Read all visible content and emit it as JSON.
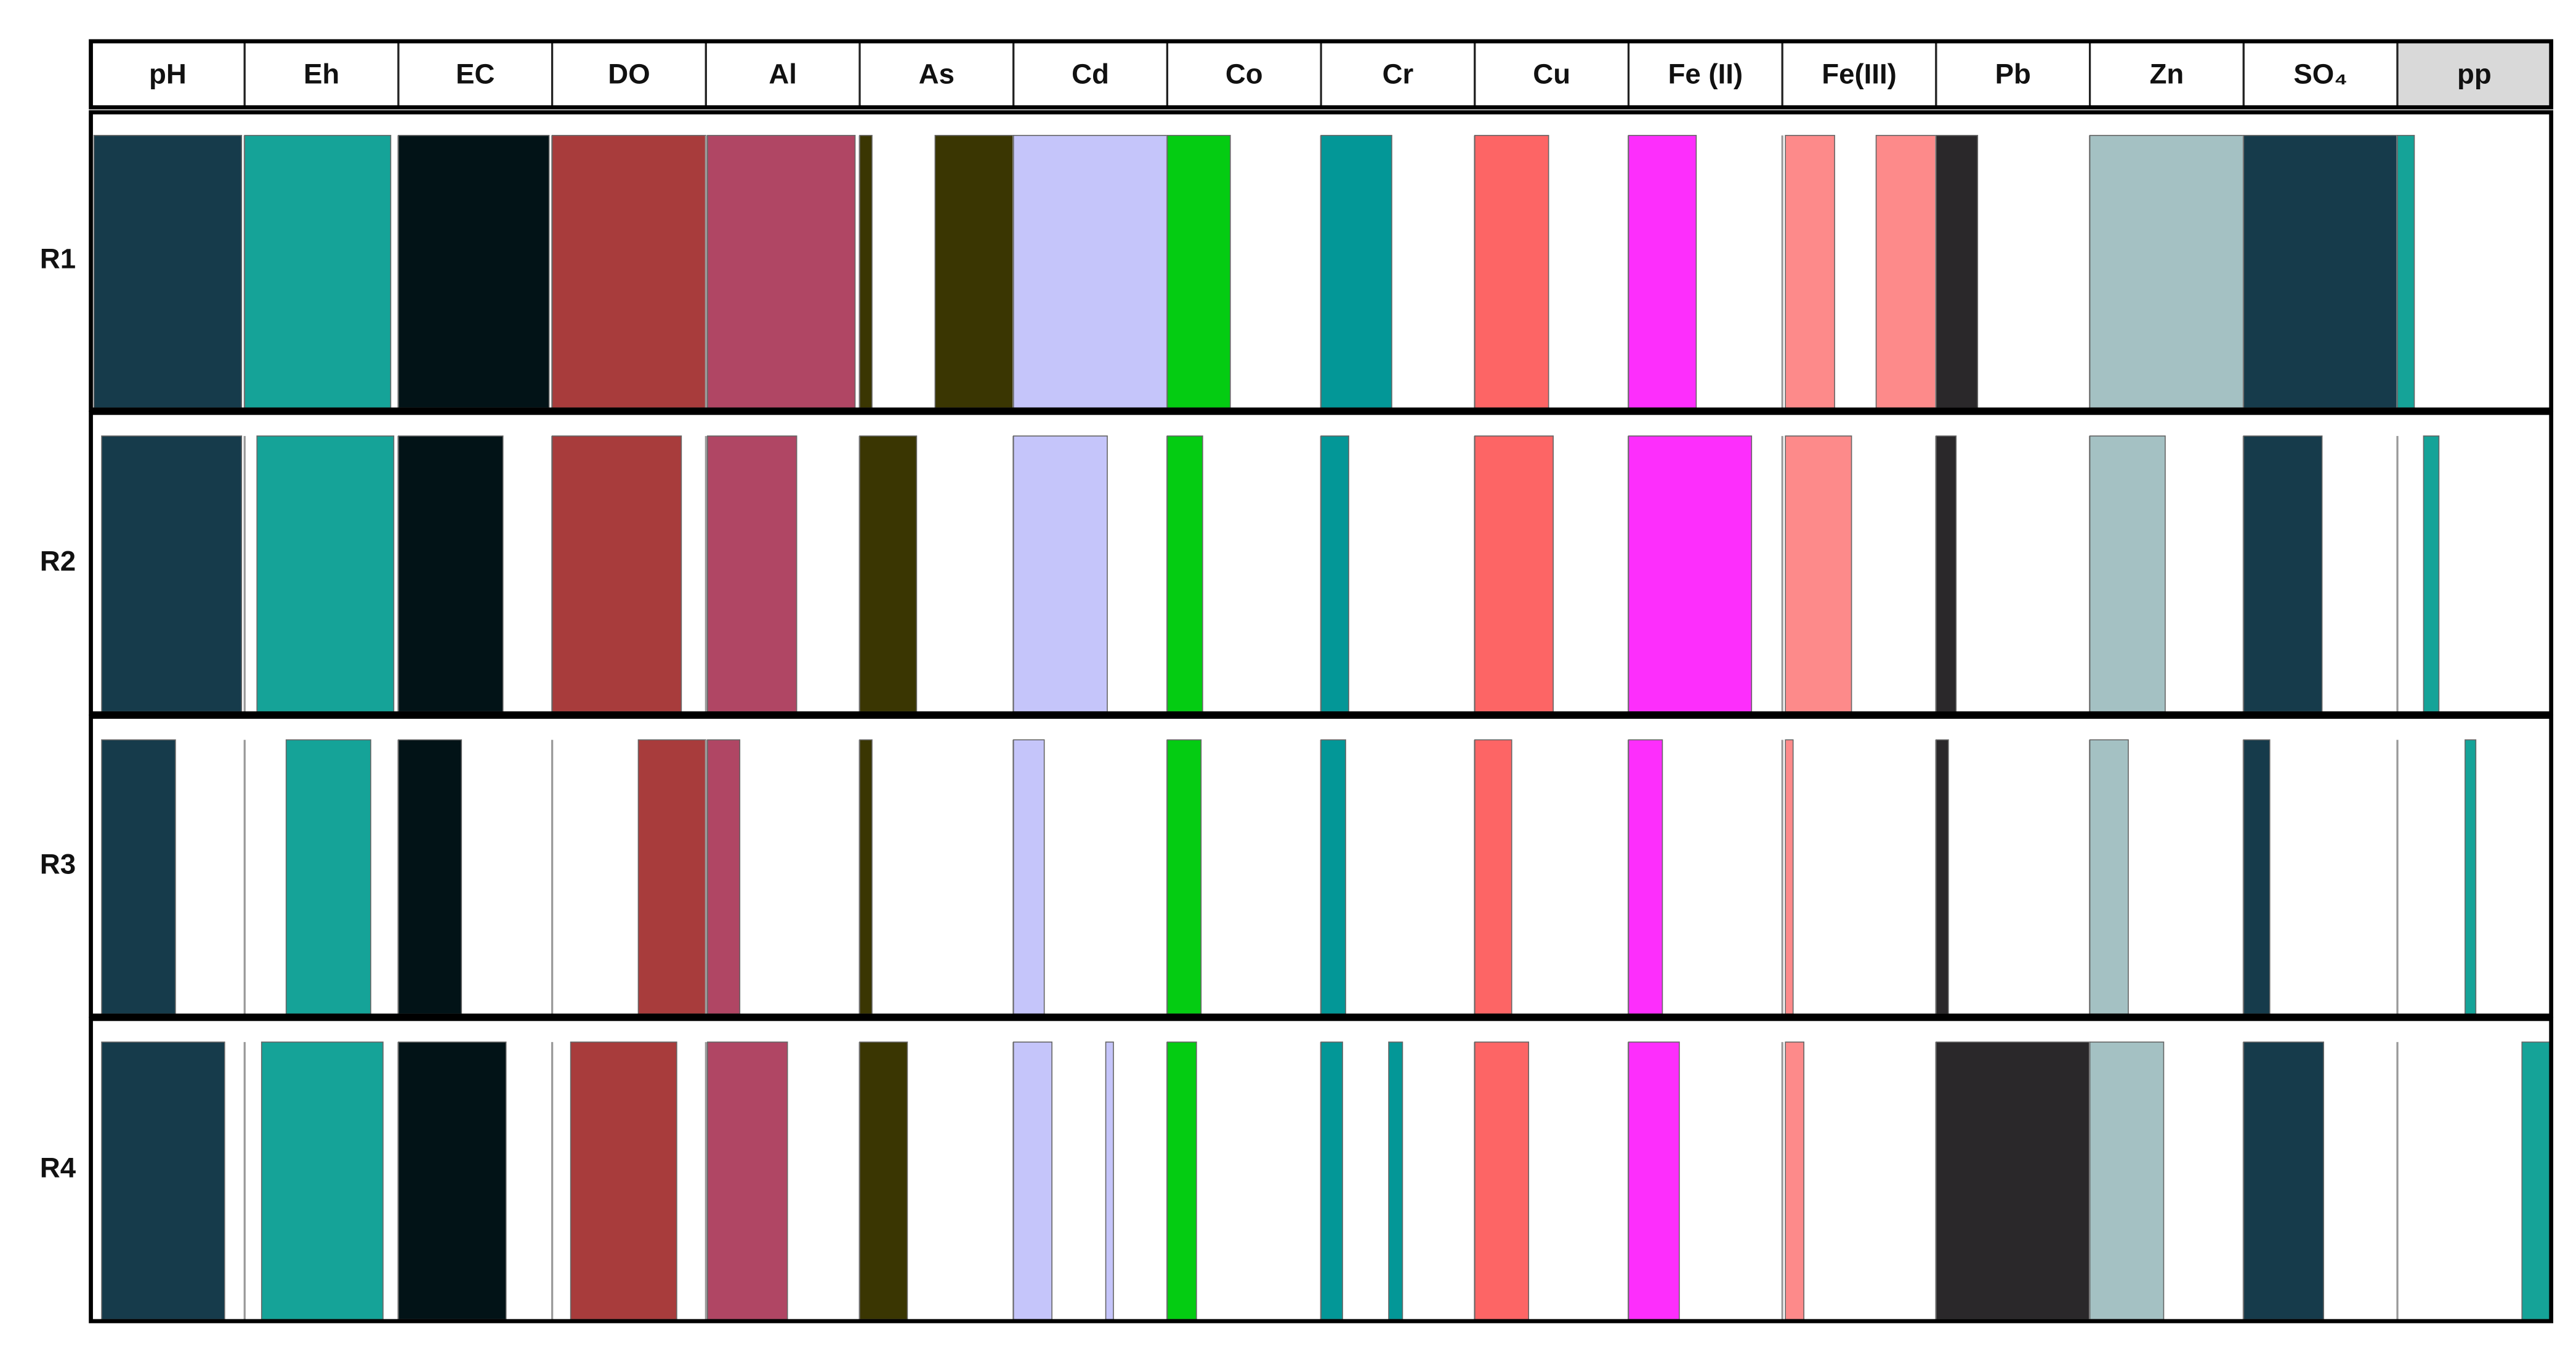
{
  "chart_data": {
    "type": "bar-matrix",
    "columns": [
      {
        "label": "pH",
        "color": "#163b4b"
      },
      {
        "label": "Eh",
        "color": "#15a398"
      },
      {
        "label": "EC",
        "color": "#021317"
      },
      {
        "label": "DO",
        "color": "#a83c3c"
      },
      {
        "label": "Al",
        "color": "#b04664"
      },
      {
        "label": "As",
        "color": "#3a3602"
      },
      {
        "label": "Cd",
        "color": "#c5c5fa"
      },
      {
        "label": "Co",
        "color": "#04cc12"
      },
      {
        "label": "Cr",
        "color": "#039797"
      },
      {
        "label": "Cu",
        "color": "#fd6565"
      },
      {
        "label": "Fe (II)",
        "color": "#fd2efc"
      },
      {
        "label": "Fe(III)",
        "color": "#fd8a8a"
      },
      {
        "label": "Pb",
        "color": "#2a282a"
      },
      {
        "label": "Zn",
        "color": "#a4c1c3"
      },
      {
        "label": "SO₄",
        "color": "#163b4b"
      },
      {
        "label": "pp",
        "color": "#15a398"
      }
    ],
    "rows": [
      {
        "label": "R1",
        "cells": [
          [
            [
              0.02,
              0.98
            ]
          ],
          [
            [
              0,
              0.95
            ]
          ],
          [
            [
              0,
              0.98
            ]
          ],
          [
            [
              0,
              1
            ]
          ],
          [
            [
              0.01,
              0.97
            ]
          ],
          [
            [
              0,
              0.08
            ],
            [
              0.49,
              1
            ]
          ],
          [
            [
              0,
              1
            ]
          ],
          [
            [
              0,
              0.41
            ]
          ],
          [
            [
              0,
              0.46
            ]
          ],
          [
            [
              0,
              0.48
            ]
          ],
          [
            [
              0,
              0.44
            ]
          ],
          [
            [
              0.02,
              0.34
            ],
            [
              0.61,
              1
            ]
          ],
          [
            [
              0,
              0.27
            ]
          ],
          [
            [
              0,
              1
            ]
          ],
          [
            [
              0,
              1
            ]
          ],
          [
            [
              0,
              0.11
            ]
          ]
        ]
      },
      {
        "label": "R2",
        "cells": [
          [
            [
              0.07,
              0.98
            ]
          ],
          [
            [
              0.08,
              0.97
            ]
          ],
          [
            [
              0,
              0.68
            ]
          ],
          [
            [
              0,
              0.84
            ]
          ],
          [
            [
              0.01,
              0.59
            ]
          ],
          [
            [
              0,
              0.37
            ]
          ],
          [
            [
              0,
              0.61
            ]
          ],
          [
            [
              0,
              0.23
            ]
          ],
          [
            [
              0,
              0.18
            ]
          ],
          [
            [
              0,
              0.51
            ]
          ],
          [
            [
              0,
              0.8
            ]
          ],
          [
            [
              0.02,
              0.45
            ]
          ],
          [
            [
              0,
              0.13
            ]
          ],
          [
            [
              0,
              0.49
            ]
          ],
          [
            [
              0,
              0.51
            ]
          ],
          [
            [
              0.17,
              0.27
            ]
          ]
        ]
      },
      {
        "label": "R3",
        "cells": [
          [
            [
              0.07,
              0.55
            ]
          ],
          [
            [
              0.27,
              0.82
            ]
          ],
          [
            [
              0,
              0.41
            ]
          ],
          [
            [
              0.56,
              1
            ]
          ],
          [
            [
              0.01,
              0.22
            ]
          ],
          [
            [
              0,
              0.08
            ]
          ],
          [
            [
              0,
              0.2
            ]
          ],
          [
            [
              0,
              0.22
            ]
          ],
          [
            [
              0,
              0.16
            ]
          ],
          [
            [
              0,
              0.24
            ]
          ],
          [
            [
              0,
              0.22
            ]
          ],
          [
            [
              0.02,
              0.07
            ]
          ],
          [
            [
              0,
              0.08
            ]
          ],
          [
            [
              0,
              0.25
            ]
          ],
          [
            [
              0,
              0.17
            ]
          ],
          [
            [
              0.44,
              0.51
            ]
          ]
        ]
      },
      {
        "label": "R4",
        "cells": [
          [
            [
              0.07,
              0.87
            ]
          ],
          [
            [
              0.11,
              0.9
            ]
          ],
          [
            [
              0,
              0.7
            ]
          ],
          [
            [
              0.12,
              0.81
            ]
          ],
          [
            [
              0.01,
              0.53
            ]
          ],
          [
            [
              0,
              0.31
            ]
          ],
          [
            [
              0,
              0.25
            ],
            [
              0.6,
              0.65
            ]
          ],
          [
            [
              0,
              0.19
            ]
          ],
          [
            [
              0,
              0.14
            ],
            [
              0.44,
              0.53
            ]
          ],
          [
            [
              0,
              0.35
            ]
          ],
          [
            [
              0,
              0.33
            ]
          ],
          [
            [
              0.02,
              0.14
            ]
          ],
          [
            [
              0,
              1
            ]
          ],
          [
            [
              0,
              0.48
            ]
          ],
          [
            [
              0,
              0.52
            ]
          ],
          [
            [
              0.81,
              1
            ]
          ]
        ]
      }
    ]
  }
}
